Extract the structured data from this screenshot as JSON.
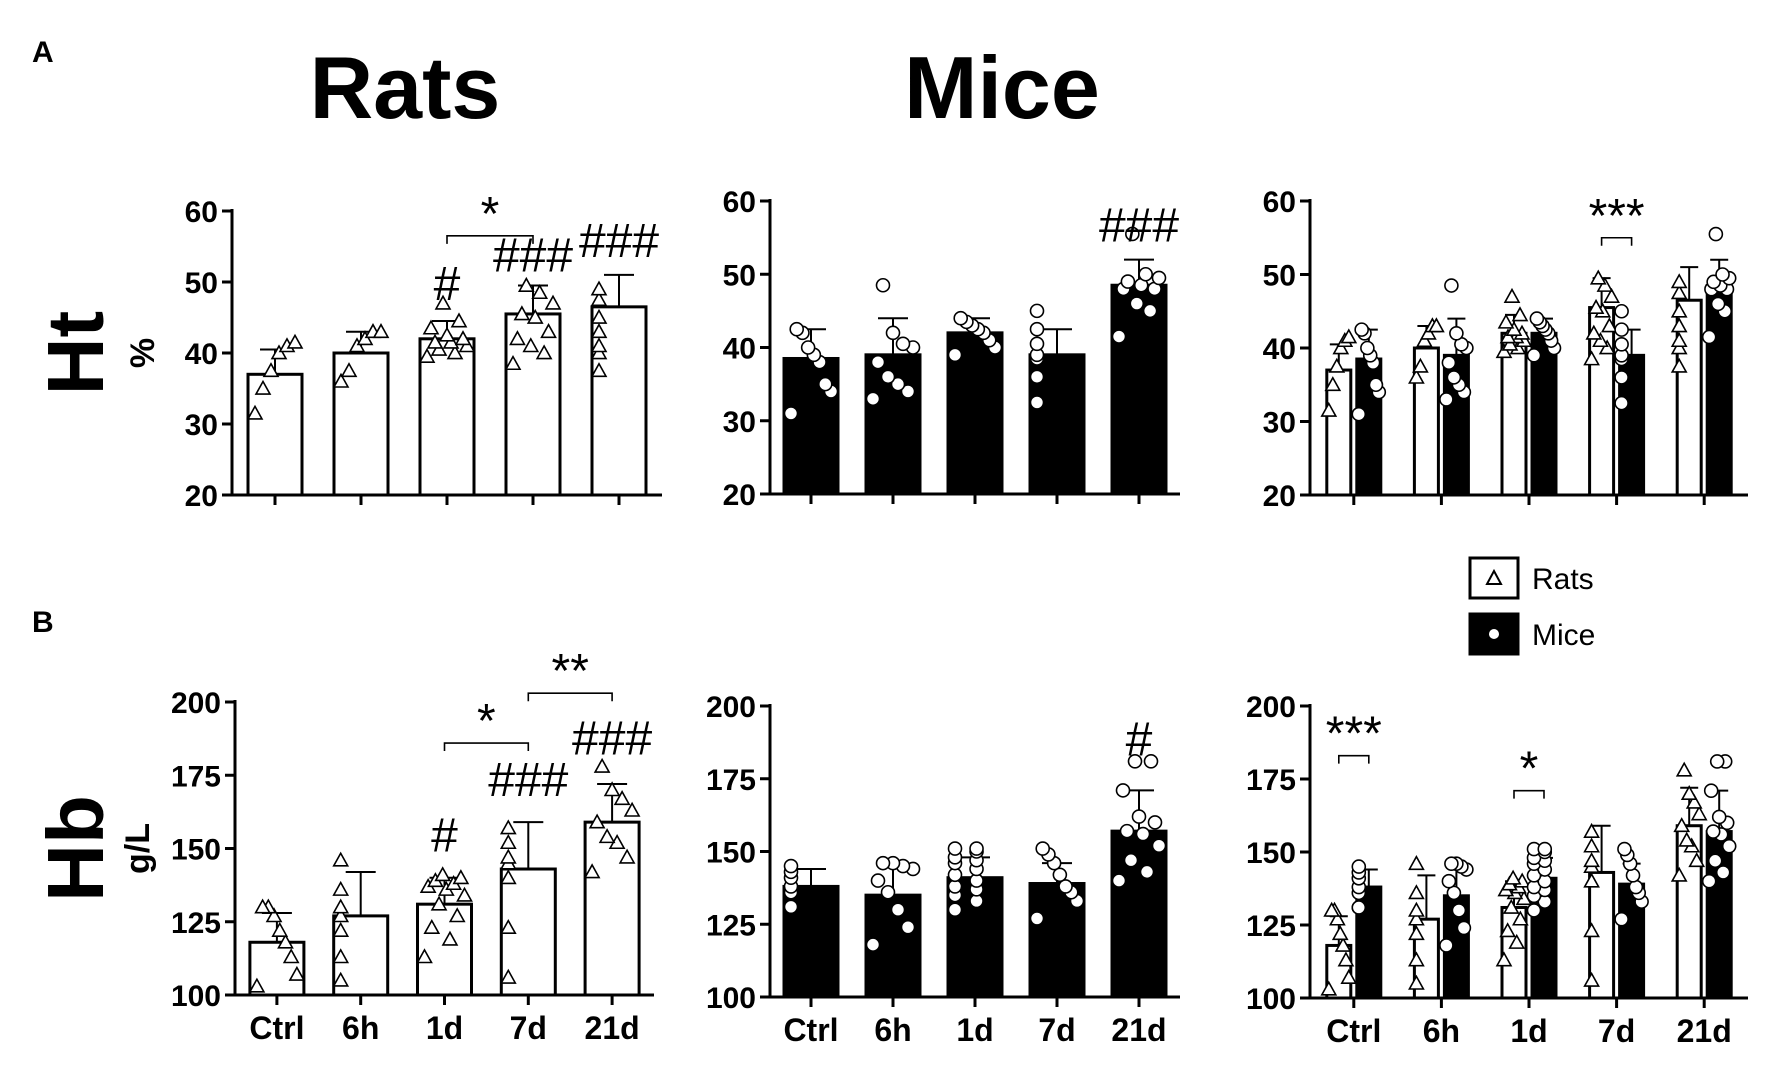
{
  "figure": {
    "panel_a": "A",
    "panel_b": "B",
    "title_rats": "Rats",
    "title_mice": "Mice"
  },
  "chart_data": [
    {
      "id": "ht-rats",
      "type": "bar",
      "row": "Ht",
      "unit": "%",
      "column": "Rats",
      "categories": [
        "Ctrl",
        "6h",
        "1d",
        "7d",
        "21d"
      ],
      "ylim": [
        20,
        60
      ],
      "yticks": [
        "20",
        "30",
        "40",
        "50",
        "60"
      ],
      "series": [
        {
          "name": "Rats",
          "values": [
            37,
            40,
            42,
            45.5,
            46.5
          ],
          "sd": [
            3.5,
            3,
            2.5,
            4,
            4.5
          ],
          "fill": "white",
          "marker": "triangle",
          "points": [
            [
              31.5,
              35,
              37.5,
              40,
              41,
              41.5
            ],
            [
              36,
              37.5,
              41,
              42,
              43,
              43
            ],
            [
              39.5,
              40,
              40.5,
              41,
              41.5,
              41.5,
              42,
              42.5,
              43.5,
              44.5,
              47
            ],
            [
              38.5,
              40,
              41,
              42,
              43,
              45,
              45.5,
              47,
              48.5,
              49.5
            ],
            [
              37.5,
              40,
              41,
              43,
              45,
              47.5,
              49
            ]
          ]
        }
      ],
      "annotations": [
        {
          "text": "*",
          "type": "bracket",
          "from": 2,
          "to": 3,
          "y": 56.5
        },
        {
          "text": "#",
          "type": "label",
          "at": 2,
          "y": 47.5
        },
        {
          "text": "###",
          "type": "label",
          "at": 3,
          "y": 51.5
        },
        {
          "text": "###",
          "type": "label",
          "at": 4,
          "y": 53.5
        }
      ]
    },
    {
      "id": "ht-mice",
      "type": "bar",
      "row": "Ht",
      "unit": "",
      "column": "Mice",
      "categories": [
        "Ctrl",
        "6h",
        "1d",
        "7d",
        "21d"
      ],
      "ylim": [
        20,
        60
      ],
      "yticks": [
        "20",
        "30",
        "40",
        "50",
        "60"
      ],
      "series": [
        {
          "name": "Mice",
          "values": [
            38.5,
            39,
            42,
            39,
            48.5
          ],
          "sd": [
            4,
            5,
            2,
            3.5,
            3.5
          ],
          "fill": "black",
          "marker": "circle",
          "points": [
            [
              31,
              34,
              35,
              38,
              39,
              40,
              42,
              42.5
            ],
            [
              33,
              34,
              35,
              36,
              38,
              40,
              40.5,
              42,
              48.5
            ],
            [
              39,
              40,
              41,
              42,
              42.5,
              43,
              43.5,
              44
            ],
            [
              32.5,
              36,
              38.5,
              39,
              40.5,
              42.5,
              45
            ],
            [
              41.5,
              45,
              46,
              48,
              48,
              48.5,
              49,
              49.5,
              50,
              55.5
            ]
          ]
        }
      ],
      "annotations": [
        {
          "text": "###",
          "type": "label",
          "at": 4,
          "y": 54.5
        }
      ]
    },
    {
      "id": "ht-both",
      "type": "bar",
      "row": "Ht",
      "unit": "",
      "column": "Both",
      "categories": [
        "Ctrl",
        "6h",
        "1d",
        "7d",
        "21d"
      ],
      "ylim": [
        20,
        60
      ],
      "yticks": [
        "20",
        "30",
        "40",
        "50",
        "60"
      ],
      "series": [
        {
          "name": "Rats",
          "values": [
            37,
            40,
            42,
            45.5,
            46.5
          ],
          "sd": [
            3.5,
            3,
            2.5,
            4,
            4.5
          ],
          "fill": "white",
          "marker": "triangle",
          "points": [
            [
              31.5,
              35,
              37.5,
              40,
              41,
              41.5
            ],
            [
              36,
              37.5,
              41,
              42,
              43,
              43
            ],
            [
              39.5,
              40,
              40.5,
              41,
              41.5,
              41.5,
              42,
              42.5,
              43.5,
              44.5,
              47
            ],
            [
              38.5,
              40,
              41,
              42,
              43,
              45,
              45.5,
              47,
              48.5,
              49.5
            ],
            [
              37.5,
              40,
              41,
              43,
              45,
              47.5,
              49
            ]
          ]
        },
        {
          "name": "Mice",
          "values": [
            38.5,
            39,
            42,
            39,
            48.5
          ],
          "sd": [
            4,
            5,
            2,
            3.5,
            3.5
          ],
          "fill": "black",
          "marker": "circle",
          "points": [
            [
              31,
              34,
              35,
              38,
              39,
              40,
              42,
              42.5
            ],
            [
              33,
              34,
              35,
              36,
              38,
              40,
              40.5,
              42,
              48.5
            ],
            [
              39,
              40,
              41,
              42,
              42.5,
              43,
              43.5,
              44
            ],
            [
              32.5,
              36,
              38.5,
              39,
              40.5,
              42.5,
              45
            ],
            [
              41.5,
              45,
              46,
              48,
              48,
              48.5,
              49,
              49.5,
              50,
              55.5
            ]
          ]
        }
      ],
      "annotations": [
        {
          "text": "***",
          "type": "pair-bracket",
          "at": 3,
          "y": 55
        }
      ]
    },
    {
      "id": "hb-rats",
      "type": "bar",
      "row": "Hb",
      "unit": "g/L",
      "column": "Rats",
      "categories": [
        "Ctrl",
        "6h",
        "1d",
        "7d",
        "21d"
      ],
      "ylim": [
        100,
        200
      ],
      "yticks": [
        "100",
        "125",
        "150",
        "175",
        "200"
      ],
      "series": [
        {
          "name": "Rats",
          "values": [
            118,
            127,
            131,
            143,
            159
          ],
          "sd": [
            10,
            15,
            9,
            16,
            13
          ],
          "fill": "white",
          "marker": "triangle",
          "points": [
            [
              103,
              107,
              113,
              118,
              122,
              127,
              130,
              130
            ],
            [
              105,
              113,
              122,
              127,
              130,
              136,
              146
            ],
            [
              113,
              119,
              123,
              127,
              131,
              134,
              136,
              137,
              138,
              139,
              140,
              141
            ],
            [
              106,
              123,
              140,
              145,
              147,
              152,
              157
            ],
            [
              142,
              147,
              152,
              154,
              159,
              163,
              167,
              170,
              178
            ]
          ]
        }
      ],
      "annotations": [
        {
          "text": "*",
          "type": "bracket",
          "from": 2,
          "to": 3,
          "y": 186
        },
        {
          "text": "**",
          "type": "bracket",
          "from": 3,
          "to": 4,
          "y": 203
        },
        {
          "text": "#",
          "type": "label",
          "at": 2,
          "y": 149
        },
        {
          "text": "###",
          "type": "label",
          "at": 3,
          "y": 168
        },
        {
          "text": "###",
          "type": "label",
          "at": 4,
          "y": 182
        }
      ]
    },
    {
      "id": "hb-mice",
      "type": "bar",
      "row": "Hb",
      "unit": "",
      "column": "Mice",
      "categories": [
        "Ctrl",
        "6h",
        "1d",
        "7d",
        "21d"
      ],
      "ylim": [
        100,
        200
      ],
      "yticks": [
        "100",
        "125",
        "150",
        "175",
        "200"
      ],
      "series": [
        {
          "name": "Mice",
          "values": [
            138,
            135,
            141,
            139,
            157
          ],
          "sd": [
            6,
            10,
            7,
            7,
            14
          ],
          "fill": "black",
          "marker": "circle",
          "points": [
            [
              131,
              131,
              136,
              138,
              141,
              143,
              145
            ],
            [
              118,
              124,
              130,
              136,
              140,
              144,
              145,
              146,
              146
            ],
            [
              130,
              133,
              135,
              137,
              138,
              140,
              142,
              144,
              146,
              147,
              148,
              150,
              151,
              151
            ],
            [
              127,
              133,
              136,
              138,
              142,
              146,
              149,
              151
            ],
            [
              140,
              143,
              147,
              152,
              156,
              157,
              160,
              162,
              171,
              181,
              181
            ]
          ]
        }
      ],
      "annotations": [
        {
          "text": "#",
          "type": "label",
          "at": 4,
          "y": 183
        }
      ]
    },
    {
      "id": "hb-both",
      "type": "bar",
      "row": "Hb",
      "unit": "",
      "column": "Both",
      "categories": [
        "Ctrl",
        "6h",
        "1d",
        "7d",
        "21d"
      ],
      "ylim": [
        100,
        200
      ],
      "yticks": [
        "100",
        "125",
        "150",
        "175",
        "200"
      ],
      "series": [
        {
          "name": "Rats",
          "values": [
            118,
            127,
            131,
            143,
            159
          ],
          "sd": [
            10,
            15,
            9,
            16,
            13
          ],
          "fill": "white",
          "marker": "triangle",
          "points": [
            [
              103,
              107,
              113,
              118,
              122,
              127,
              130,
              130
            ],
            [
              105,
              113,
              122,
              127,
              130,
              136,
              146
            ],
            [
              113,
              119,
              123,
              127,
              131,
              134,
              136,
              137,
              138,
              139,
              140,
              141
            ],
            [
              106,
              123,
              140,
              145,
              147,
              152,
              157
            ],
            [
              142,
              147,
              152,
              154,
              159,
              163,
              167,
              170,
              178
            ]
          ]
        },
        {
          "name": "Mice",
          "values": [
            138,
            135,
            141,
            139,
            157
          ],
          "sd": [
            6,
            10,
            7,
            7,
            14
          ],
          "fill": "black",
          "marker": "circle",
          "points": [
            [
              131,
              131,
              136,
              138,
              141,
              143,
              145
            ],
            [
              118,
              124,
              130,
              136,
              140,
              144,
              145,
              146,
              146
            ],
            [
              130,
              133,
              135,
              137,
              138,
              140,
              142,
              144,
              146,
              147,
              148,
              150,
              151,
              151
            ],
            [
              127,
              133,
              136,
              138,
              142,
              146,
              149,
              151
            ],
            [
              140,
              143,
              147,
              152,
              156,
              157,
              160,
              162,
              171,
              181,
              181
            ]
          ]
        }
      ],
      "annotations": [
        {
          "text": "***",
          "type": "pair-bracket",
          "at": 0,
          "y": 183
        },
        {
          "text": "*",
          "type": "pair-bracket",
          "at": 2,
          "y": 171
        }
      ]
    }
  ],
  "legend": {
    "items": [
      {
        "label": "Rats",
        "fill": "white",
        "marker": "triangle"
      },
      {
        "label": "Mice",
        "fill": "black",
        "marker": "circle"
      }
    ]
  }
}
